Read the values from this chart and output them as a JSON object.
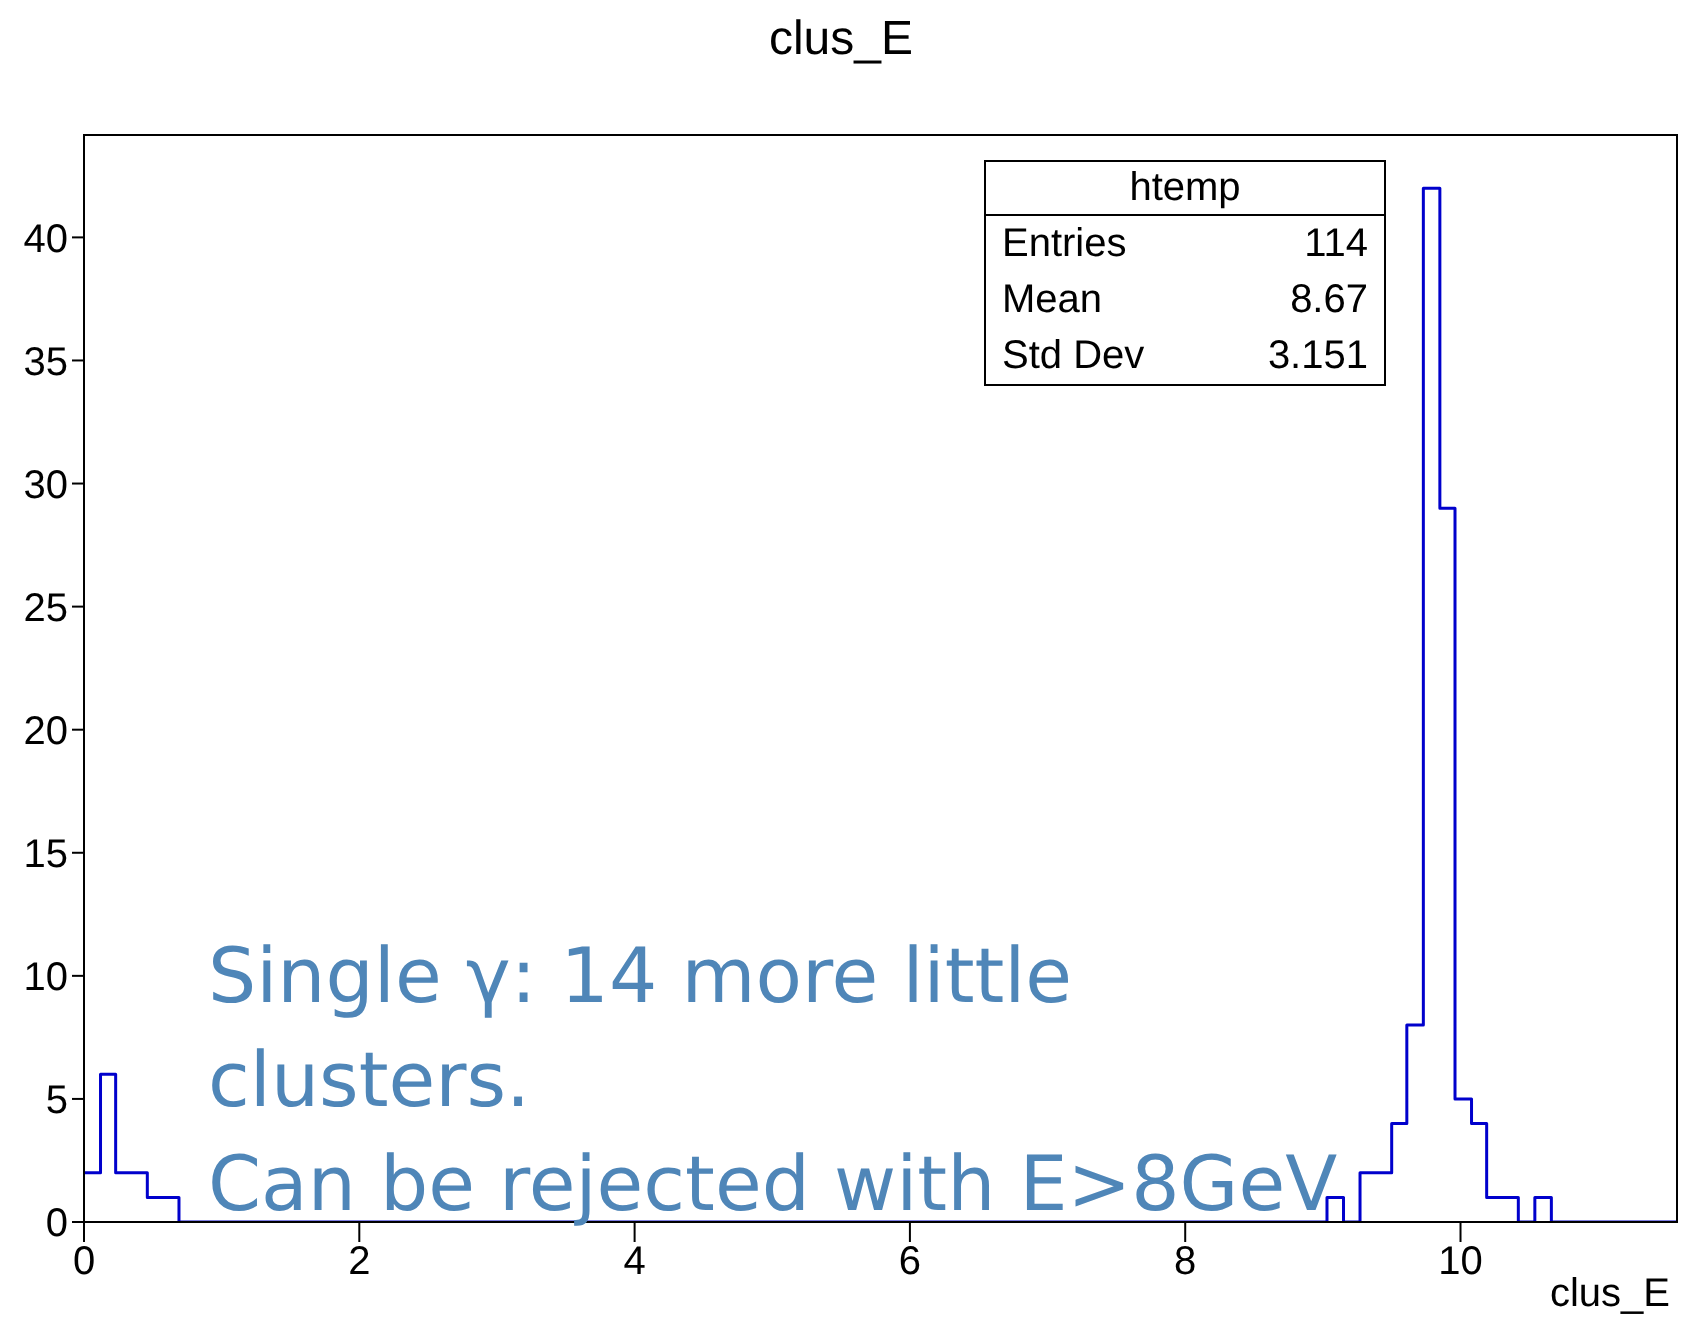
{
  "chart_data": {
    "type": "histogram",
    "title": "clus_E",
    "xlabel": "clus_E",
    "bins": [
      0,
      0.12,
      0.23,
      0.46,
      0.69,
      9.03,
      9.15,
      9.27,
      9.5,
      9.61,
      9.73,
      9.85,
      9.96,
      10.08,
      10.19,
      10.42,
      10.54,
      10.66,
      11.58
    ],
    "values": [
      2,
      6,
      2,
      1,
      0,
      1,
      0,
      2,
      4,
      8,
      42,
      29,
      5,
      4,
      1,
      0,
      1,
      0
    ],
    "color": "#0000cc",
    "xlim": [
      0,
      11.58
    ],
    "xticks": [
      0,
      2,
      4,
      6,
      8,
      10
    ],
    "ylim": [
      0,
      44.2
    ],
    "yticks": [
      0,
      5,
      10,
      15,
      20,
      25,
      30,
      35,
      40
    ],
    "grid": false,
    "annotations": [
      "htemp",
      "Entries",
      "114",
      "Mean",
      "8.67",
      "Std Dev",
      "3.151",
      "Single γ: 14 more little clusters.",
      "Can be rejected with E>8GeV"
    ]
  }
}
